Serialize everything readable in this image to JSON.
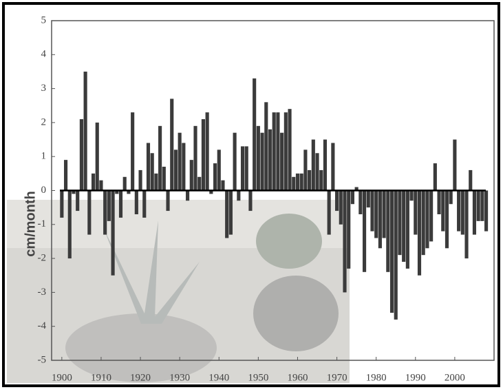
{
  "chart_data": {
    "type": "bar",
    "y_label": "cm/month",
    "color": "#3b3b3b",
    "x": [
      1900,
      1901,
      1902,
      1903,
      1904,
      1905,
      1906,
      1907,
      1908,
      1909,
      1910,
      1911,
      1912,
      1913,
      1914,
      1915,
      1916,
      1917,
      1918,
      1919,
      1920,
      1921,
      1922,
      1923,
      1924,
      1925,
      1926,
      1927,
      1928,
      1929,
      1930,
      1931,
      1932,
      1933,
      1934,
      1935,
      1936,
      1937,
      1938,
      1939,
      1940,
      1941,
      1942,
      1943,
      1944,
      1945,
      1946,
      1947,
      1948,
      1949,
      1950,
      1951,
      1952,
      1953,
      1954,
      1955,
      1956,
      1957,
      1958,
      1959,
      1960,
      1961,
      1962,
      1963,
      1964,
      1965,
      1966,
      1967,
      1968,
      1969,
      1970,
      1971,
      1972,
      1973,
      1974,
      1975,
      1976,
      1977,
      1978,
      1979,
      1980,
      1981,
      1982,
      1983,
      1984,
      1985,
      1986,
      1987,
      1988,
      1989,
      1990,
      1991,
      1992,
      1993,
      1994,
      1995,
      1996,
      1997,
      1998,
      1999,
      2000,
      2001,
      2002,
      2003,
      2004,
      2005,
      2006,
      2007,
      2008
    ],
    "values": [
      -0.8,
      0.9,
      -2.0,
      -0.1,
      -0.6,
      2.1,
      3.5,
      -1.3,
      0.5,
      2.0,
      0.3,
      -1.3,
      -0.9,
      -2.5,
      -0.1,
      -0.8,
      0.4,
      -0.1,
      2.3,
      -0.7,
      0.6,
      -0.8,
      1.4,
      1.1,
      0.5,
      1.9,
      0.7,
      -0.6,
      2.7,
      1.2,
      1.7,
      1.4,
      -0.3,
      0.9,
      1.9,
      0.4,
      2.1,
      2.3,
      -0.1,
      0.8,
      1.2,
      0.3,
      -1.4,
      -1.3,
      1.7,
      -0.3,
      1.3,
      1.3,
      -0.6,
      3.3,
      1.9,
      1.7,
      2.6,
      1.8,
      2.3,
      2.3,
      1.7,
      2.3,
      2.4,
      0.4,
      0.5,
      0.5,
      1.2,
      0.6,
      1.5,
      1.1,
      0.6,
      1.5,
      -1.3,
      1.4,
      -0.6,
      -1.0,
      -3.0,
      -2.3,
      -0.4,
      0.1,
      -0.7,
      -2.4,
      -0.5,
      -1.2,
      -1.4,
      -1.7,
      -1.4,
      -2.4,
      -3.6,
      -3.8,
      -1.9,
      -2.1,
      -2.3,
      -0.3,
      -1.3,
      -2.5,
      -1.9,
      -1.7,
      -1.5,
      0.8,
      -0.7,
      -1.2,
      -1.7,
      -0.4,
      1.5,
      -1.2,
      -1.3,
      -2.0,
      0.6,
      -1.3,
      -0.9,
      -0.9,
      -1.2
    ],
    "xlim": [
      1897.4,
      2010
    ],
    "xticks": [
      1900,
      1910,
      1920,
      1930,
      1940,
      1950,
      1960,
      1970,
      1980,
      1990,
      2000
    ],
    "ylim": [
      -5,
      5
    ],
    "yticks": [
      5,
      4,
      3,
      2,
      1,
      0,
      -1,
      -2,
      -3,
      -4,
      -5
    ]
  }
}
